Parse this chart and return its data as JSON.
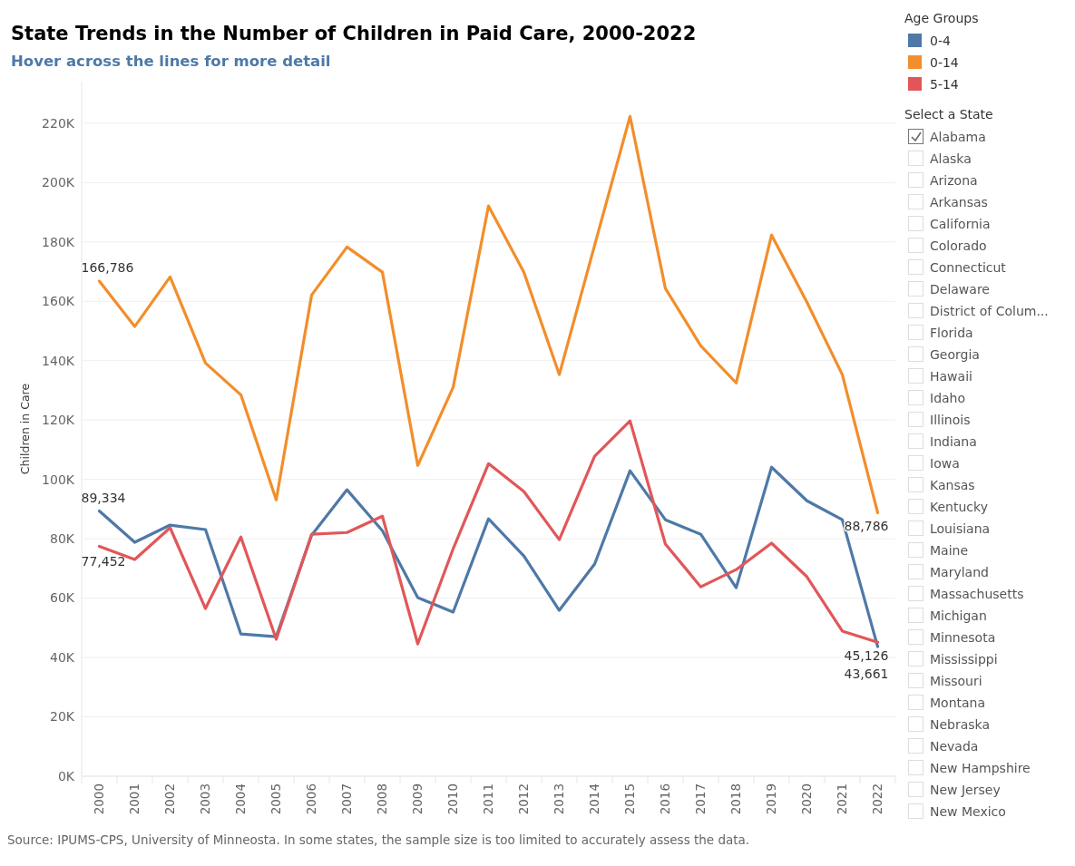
{
  "chart_data": {
    "type": "line",
    "title": "State Trends in the Number of Children in Paid Care, 2000-2022",
    "subtitle": "Hover across the lines for more detail",
    "ylabel": "Children in Care",
    "legend_title": "Age Groups",
    "legend": "top right",
    "grid": "y",
    "line_style": "solid",
    "marker": "none",
    "categories": [
      "2000",
      "2001",
      "2002",
      "2003",
      "2004",
      "2005",
      "2006",
      "2007",
      "2008",
      "2009",
      "2010",
      "2011",
      "2012",
      "2013",
      "2014",
      "2015",
      "2016",
      "2017",
      "2018",
      "2019",
      "2020",
      "2021",
      "2022"
    ],
    "ylim": [
      0,
      234000
    ],
    "yticks": [
      {
        "value": 0,
        "label": "0K"
      },
      {
        "value": 20000,
        "label": "20K"
      },
      {
        "value": 40000,
        "label": "40K"
      },
      {
        "value": 60000,
        "label": "60K"
      },
      {
        "value": 80000,
        "label": "80K"
      },
      {
        "value": 100000,
        "label": "100K"
      },
      {
        "value": 120000,
        "label": "120K"
      },
      {
        "value": 140000,
        "label": "140K"
      },
      {
        "value": 160000,
        "label": "160K"
      },
      {
        "value": 180000,
        "label": "180K"
      },
      {
        "value": 200000,
        "label": "200K"
      },
      {
        "value": 220000,
        "label": "220K"
      }
    ],
    "series": [
      {
        "name": "0-4",
        "color": "#4e79a7",
        "values": [
          89334,
          78800,
          84600,
          83100,
          47900,
          47000,
          81200,
          96500,
          82700,
          60200,
          55300,
          86700,
          74200,
          55900,
          71500,
          102900,
          86400,
          81500,
          63500,
          104100,
          92800,
          86400,
          43661
        ],
        "value_labels": [
          "89,334",
          null,
          null,
          null,
          null,
          null,
          null,
          null,
          null,
          null,
          null,
          null,
          null,
          null,
          null,
          null,
          null,
          null,
          null,
          null,
          null,
          null,
          "43,661"
        ]
      },
      {
        "name": "0-14",
        "color": "#f28e2b",
        "values": [
          166786,
          151500,
          168200,
          139200,
          128500,
          93100,
          162100,
          178300,
          169800,
          104700,
          131000,
          192100,
          169800,
          135300,
          178900,
          222300,
          164300,
          145000,
          132500,
          182300,
          159700,
          135300,
          88786
        ],
        "value_labels": [
          "166,786",
          null,
          null,
          null,
          null,
          null,
          null,
          null,
          null,
          null,
          null,
          null,
          null,
          null,
          null,
          null,
          null,
          null,
          null,
          null,
          null,
          null,
          "88,786"
        ]
      },
      {
        "name": "5-14",
        "color": "#e15759",
        "values": [
          77452,
          73000,
          83700,
          56500,
          80600,
          46100,
          81500,
          82100,
          87600,
          44600,
          76600,
          105300,
          95900,
          79700,
          107800,
          119700,
          78200,
          63800,
          69600,
          78500,
          67200,
          48900,
          45126
        ],
        "value_labels": [
          "77,452",
          null,
          null,
          null,
          null,
          null,
          null,
          null,
          null,
          null,
          null,
          null,
          null,
          null,
          null,
          null,
          null,
          null,
          null,
          null,
          null,
          null,
          "45,126"
        ]
      }
    ],
    "annotations": [
      "Source: IPUMS-CPS, University of Minneosta.  In some states, the sample size is too limited to accurately assess the data.",
      "Select a State",
      "Alabama",
      "Alaska",
      "Arizona",
      "Arkansas",
      "California",
      "Colorado",
      "Connecticut",
      "Delaware",
      "District of Colum...",
      "Florida",
      "Georgia",
      "Hawaii",
      "Idaho",
      "Illinois",
      "Indiana",
      "Iowa",
      "Kansas",
      "Kentucky",
      "Louisiana",
      "Maine",
      "Maryland",
      "Massachusetts",
      "Michigan",
      "Minnesota",
      "Mississippi",
      "Missouri",
      "Montana",
      "Nebraska",
      "Nevada",
      "New Hampshire",
      "New Jersey",
      "New Mexico"
    ]
  }
}
